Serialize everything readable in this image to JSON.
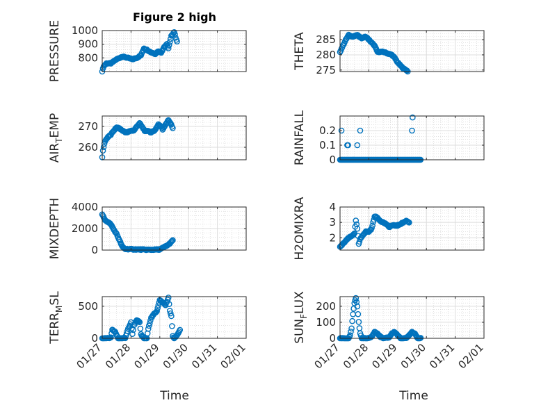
{
  "figure": {
    "title": "Figure 2 high",
    "marker_color": "#0072BD",
    "background": "#ffffff"
  },
  "chart_data": [
    {
      "type": "scatter",
      "ylabel": "PRESSURE",
      "title": "Figure 2 high",
      "xlim": [
        "01/27",
        "02/01"
      ],
      "ylim": [
        700,
        1000
      ],
      "yticks": [
        800,
        900,
        1000
      ],
      "grid": true,
      "minor_grid": true,
      "keypoints": [
        [
          0,
          700
        ],
        [
          0.05,
          740
        ],
        [
          0.15,
          760
        ],
        [
          0.3,
          760
        ],
        [
          0.4,
          775
        ],
        [
          0.5,
          790
        ],
        [
          0.7,
          810
        ],
        [
          0.9,
          800
        ],
        [
          1.05,
          790
        ],
        [
          1.2,
          800
        ],
        [
          1.35,
          820
        ],
        [
          1.45,
          870
        ],
        [
          1.55,
          860
        ],
        [
          1.7,
          840
        ],
        [
          1.85,
          830
        ],
        [
          1.95,
          850
        ],
        [
          2.05,
          840
        ],
        [
          2.15,
          880
        ],
        [
          2.25,
          900
        ],
        [
          2.3,
          870
        ],
        [
          2.4,
          960
        ],
        [
          2.5,
          990
        ],
        [
          2.55,
          950
        ],
        [
          2.6,
          920
        ]
      ]
    },
    {
      "type": "scatter",
      "ylabel": "THETA",
      "xlim": [
        "01/27",
        "02/01"
      ],
      "ylim": [
        274.5,
        288
      ],
      "yticks": [
        275,
        280,
        285
      ],
      "grid": true,
      "minor_grid": true,
      "keypoints": [
        [
          0,
          281
        ],
        [
          0.1,
          283
        ],
        [
          0.2,
          285
        ],
        [
          0.3,
          286.5
        ],
        [
          0.45,
          286
        ],
        [
          0.6,
          286.5
        ],
        [
          0.75,
          285.5
        ],
        [
          0.9,
          286
        ],
        [
          1.0,
          285
        ],
        [
          1.1,
          284
        ],
        [
          1.2,
          283
        ],
        [
          1.3,
          281
        ],
        [
          1.5,
          281
        ],
        [
          1.65,
          280.5
        ],
        [
          1.8,
          280
        ],
        [
          1.9,
          279
        ],
        [
          2.0,
          277.5
        ],
        [
          2.1,
          276.5
        ],
        [
          2.2,
          275.5
        ],
        [
          2.3,
          275
        ],
        [
          2.35,
          274.6
        ]
      ]
    },
    {
      "type": "scatter",
      "ylabel": "AIR_TEMP",
      "xlim": [
        "01/27",
        "02/01"
      ],
      "ylim": [
        254,
        275
      ],
      "yticks": [
        260,
        270
      ],
      "grid": true,
      "minor_grid": true,
      "keypoints": [
        [
          0,
          255
        ],
        [
          0.03,
          259
        ],
        [
          0.1,
          263
        ],
        [
          0.2,
          265
        ],
        [
          0.3,
          266
        ],
        [
          0.4,
          268
        ],
        [
          0.5,
          269.5
        ],
        [
          0.6,
          269
        ],
        [
          0.7,
          268
        ],
        [
          0.85,
          267
        ],
        [
          1.0,
          268
        ],
        [
          1.1,
          268
        ],
        [
          1.2,
          270
        ],
        [
          1.3,
          271.5
        ],
        [
          1.4,
          269.5
        ],
        [
          1.5,
          267.5
        ],
        [
          1.6,
          268
        ],
        [
          1.7,
          267
        ],
        [
          1.85,
          268.5
        ],
        [
          1.95,
          271
        ],
        [
          2.05,
          270
        ],
        [
          2.1,
          268.5
        ],
        [
          2.2,
          271
        ],
        [
          2.3,
          273
        ],
        [
          2.38,
          271.5
        ],
        [
          2.45,
          269
        ]
      ]
    },
    {
      "type": "scatter",
      "ylabel": "RAINFALL",
      "xlim": [
        "01/27",
        "02/01"
      ],
      "ylim": [
        0,
        0.3
      ],
      "yticks": [
        0,
        0.1,
        0.2
      ],
      "grid": true,
      "minor_grid": true,
      "baseline": 0,
      "spikes": [
        [
          0.05,
          0.2
        ],
        [
          0.25,
          0.1
        ],
        [
          0.28,
          0.1
        ],
        [
          0.6,
          0.1
        ],
        [
          0.7,
          0.2
        ],
        [
          2.5,
          0.2
        ],
        [
          2.52,
          0.29
        ]
      ]
    },
    {
      "type": "scatter",
      "ylabel": "MIXDEPTH",
      "xlim": [
        "01/27",
        "02/01"
      ],
      "ylim": [
        0,
        4000
      ],
      "yticks": [
        0,
        2000,
        4000
      ],
      "grid": true,
      "minor_grid": true,
      "keypoints": [
        [
          0,
          3300
        ],
        [
          0.1,
          2800
        ],
        [
          0.2,
          2600
        ],
        [
          0.3,
          2400
        ],
        [
          0.4,
          1900
        ],
        [
          0.5,
          1500
        ],
        [
          0.6,
          900
        ],
        [
          0.7,
          300
        ],
        [
          0.8,
          100
        ],
        [
          1.0,
          80
        ],
        [
          1.2,
          60
        ],
        [
          1.4,
          50
        ],
        [
          1.6,
          30
        ],
        [
          1.8,
          40
        ],
        [
          2.0,
          60
        ],
        [
          2.1,
          200
        ],
        [
          2.2,
          350
        ],
        [
          2.3,
          500
        ],
        [
          2.38,
          700
        ],
        [
          2.45,
          900
        ]
      ]
    },
    {
      "type": "scatter",
      "ylabel": "H2OMIXRA",
      "xlim": [
        "01/27",
        "02/01"
      ],
      "ylim": [
        1.2,
        4
      ],
      "yticks": [
        2,
        3,
        4
      ],
      "grid": true,
      "minor_grid": true,
      "keypoints": [
        [
          0,
          1.4
        ],
        [
          0.1,
          1.6
        ],
        [
          0.2,
          1.8
        ],
        [
          0.3,
          2.0
        ],
        [
          0.4,
          2.1
        ],
        [
          0.5,
          2.3
        ],
        [
          0.55,
          3.1
        ],
        [
          0.6,
          2.6
        ],
        [
          0.65,
          1.6
        ],
        [
          0.7,
          1.9
        ],
        [
          0.8,
          2.2
        ],
        [
          0.9,
          2.4
        ],
        [
          1.0,
          2.4
        ],
        [
          1.1,
          2.6
        ],
        [
          1.2,
          3.4
        ],
        [
          1.3,
          3.3
        ],
        [
          1.4,
          3.1
        ],
        [
          1.5,
          3.0
        ],
        [
          1.6,
          2.9
        ],
        [
          1.7,
          2.7
        ],
        [
          1.8,
          2.8
        ],
        [
          2.0,
          2.8
        ],
        [
          2.1,
          2.9
        ],
        [
          2.2,
          3.0
        ],
        [
          2.3,
          3.1
        ],
        [
          2.4,
          3.0
        ]
      ]
    },
    {
      "type": "scatter",
      "ylabel": "TERR_MSL",
      "xlim": [
        "01/27",
        "02/01"
      ],
      "ylim": [
        0,
        650
      ],
      "yticks": [
        0,
        500
      ],
      "grid": true,
      "minor_grid": true,
      "keypoints": [
        [
          0,
          0
        ],
        [
          0.2,
          0
        ],
        [
          0.3,
          10
        ],
        [
          0.35,
          130
        ],
        [
          0.45,
          100
        ],
        [
          0.55,
          0
        ],
        [
          0.7,
          0
        ],
        [
          0.8,
          5
        ],
        [
          0.9,
          150
        ],
        [
          1.0,
          250
        ],
        [
          1.05,
          70
        ],
        [
          1.1,
          200
        ],
        [
          1.2,
          280
        ],
        [
          1.3,
          250
        ],
        [
          1.35,
          60
        ],
        [
          1.45,
          0
        ],
        [
          1.55,
          0
        ],
        [
          1.6,
          150
        ],
        [
          1.7,
          320
        ],
        [
          1.8,
          380
        ],
        [
          1.9,
          420
        ],
        [
          2.0,
          600
        ],
        [
          2.1,
          560
        ],
        [
          2.2,
          520
        ],
        [
          2.3,
          630
        ],
        [
          2.35,
          430
        ],
        [
          2.4,
          350
        ],
        [
          2.45,
          30
        ],
        [
          2.5,
          0
        ],
        [
          2.6,
          50
        ],
        [
          2.7,
          130
        ]
      ]
    },
    {
      "type": "scatter",
      "ylabel": "SUN_FLUX",
      "xlim": [
        "01/27",
        "02/01"
      ],
      "ylim": [
        0,
        260
      ],
      "yticks": [
        0,
        100,
        200
      ],
      "grid": true,
      "minor_grid": true,
      "keypoints": [
        [
          0,
          0
        ],
        [
          0.3,
          0
        ],
        [
          0.35,
          20
        ],
        [
          0.4,
          60
        ],
        [
          0.45,
          150
        ],
        [
          0.5,
          220
        ],
        [
          0.55,
          250
        ],
        [
          0.6,
          200
        ],
        [
          0.65,
          100
        ],
        [
          0.7,
          30
        ],
        [
          0.75,
          0
        ],
        [
          1.0,
          0
        ],
        [
          1.1,
          10
        ],
        [
          1.2,
          40
        ],
        [
          1.3,
          30
        ],
        [
          1.4,
          10
        ],
        [
          1.5,
          0
        ],
        [
          1.7,
          5
        ],
        [
          1.8,
          30
        ],
        [
          1.9,
          40
        ],
        [
          2.0,
          20
        ],
        [
          2.1,
          0
        ],
        [
          2.3,
          0
        ],
        [
          2.4,
          20
        ],
        [
          2.5,
          40
        ],
        [
          2.6,
          30
        ],
        [
          2.7,
          0
        ],
        [
          2.8,
          0
        ]
      ]
    }
  ],
  "x_tick_labels": [
    "01/27",
    "01/28",
    "01/29",
    "01/30",
    "01/31",
    "02/01"
  ],
  "xlabel": "Time"
}
